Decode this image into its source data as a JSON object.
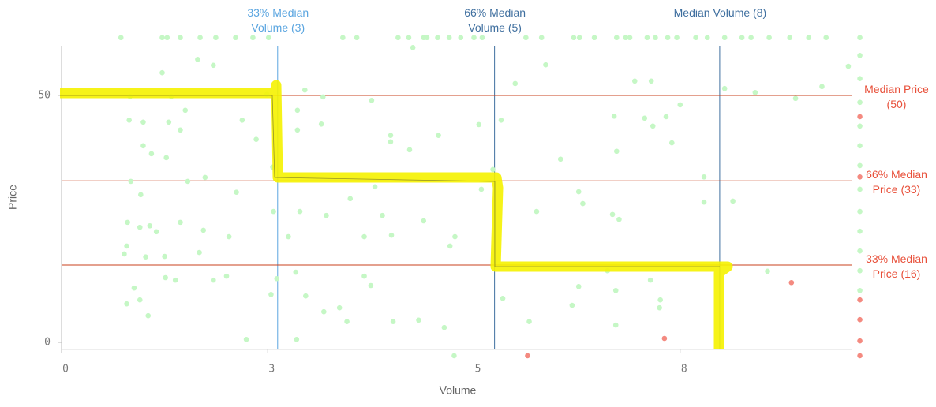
{
  "chart_data": {
    "type": "scatter",
    "x_label": "Volume",
    "y_label": "Price",
    "xlim": [
      0,
      9.8
    ],
    "ylim": [
      -3,
      62
    ],
    "xticks": [
      {
        "value": 0,
        "label": "0"
      },
      {
        "value": 2.5,
        "label": "3"
      },
      {
        "value": 5,
        "label": "5"
      },
      {
        "value": 7.5,
        "label": "8"
      }
    ],
    "yticks": [
      0,
      50
    ],
    "reference_lines": {
      "x": [
        {
          "value": 2.62,
          "label": "33% Median Volume (3)",
          "color": "#5aa5e0"
        },
        {
          "value": 5.25,
          "label": "66% Median Volume (5)",
          "color": "#3f6f9f"
        },
        {
          "value": 7.98,
          "label": "Median Volume (8)",
          "color": "#3f6f9f"
        }
      ],
      "y": [
        {
          "value": 50,
          "label": "Median Price (50)",
          "color": "#c8401c"
        },
        {
          "value": 32.7,
          "label": "66% Median Price (33)",
          "color": "#c8401c"
        },
        {
          "value": 15.65,
          "label": "33% Median Price (16)",
          "color": "#c8401c"
        }
      ]
    },
    "series": [
      {
        "color": "#c5f7c5",
        "x": [
          0.72,
          1.22,
          1.28,
          1.44,
          1.68,
          1.87,
          2.11,
          2.32,
          2.51,
          3.41,
          3.58,
          4.08,
          4.21,
          4.39,
          4.43,
          4.56,
          4.7,
          4.84,
          5.0,
          5.1,
          5.63,
          5.82,
          6.21,
          6.28,
          6.46,
          6.73,
          6.84,
          6.89,
          7.1,
          7.2,
          7.35,
          7.46,
          7.69,
          7.83,
          8.04,
          8.25,
          8.36,
          8.58,
          8.83,
          9.06,
          9.27,
          9.68,
          9.68,
          9.68,
          9.68,
          9.68,
          9.68,
          9.68,
          9.68,
          9.68,
          9.68,
          9.68,
          9.68,
          9.68,
          1.65,
          1.84,
          1.22,
          1.33,
          0.83,
          2.49,
          2.95,
          3.17,
          3.76,
          0.82,
          0.99,
          1.3,
          1.44,
          1.5,
          2.19,
          2.86,
          3.15,
          0.99,
          1.09,
          1.27,
          2.36,
          2.86,
          3.99,
          3.99,
          4.22,
          4.57,
          5.06,
          5.33,
          5.5,
          5.87,
          6.05,
          6.7,
          6.73,
          6.95,
          7.15,
          7.07,
          7.17,
          7.33,
          7.4,
          7.5,
          7.79,
          8.04,
          8.41,
          8.9,
          9.22,
          9.54,
          0.84,
          0.96,
          0.8,
          0.95,
          1.07,
          1.15,
          1.44,
          1.53,
          1.74,
          1.72,
          2.03,
          2.12,
          2.57,
          2.75,
          2.89,
          3.21,
          3.5,
          3.8,
          3.89,
          3.67,
          4.0,
          4.39,
          4.71,
          4.77,
          5.09,
          5.76,
          6.27,
          6.32,
          6.68,
          6.76,
          7.79,
          8.14,
          0.79,
          0.76,
          1.02,
          1.25,
          1.67,
          1.26,
          1.38,
          0.88,
          0.95,
          0.79,
          1.05,
          1.84,
          2.0,
          2.54,
          2.61,
          2.84,
          2.96,
          3.18,
          3.37,
          3.46,
          3.67,
          3.75,
          4.02,
          4.33,
          4.64,
          5.35,
          5.67,
          6.19,
          6.27,
          6.62,
          6.72,
          6.72,
          7.14,
          7.26,
          7.25,
          8.56,
          2.24,
          2.85,
          5.23,
          4.26,
          2.56,
          4.76
        ],
        "values": [
          61.7,
          61.7,
          61.7,
          61.7,
          61.7,
          61.7,
          61.7,
          61.7,
          61.7,
          61.7,
          61.7,
          61.7,
          61.7,
          61.7,
          61.7,
          61.7,
          61.7,
          61.7,
          61.7,
          61.7,
          61.7,
          61.7,
          61.7,
          61.7,
          61.7,
          61.7,
          61.7,
          61.7,
          61.7,
          61.7,
          61.7,
          61.7,
          61.7,
          61.7,
          61.7,
          61.7,
          61.7,
          61.7,
          61.7,
          61.7,
          61.7,
          61.7,
          58.1,
          53.4,
          48.6,
          43.8,
          39.8,
          35.8,
          31.0,
          26.5,
          22.5,
          18.5,
          14.5,
          10.5,
          57.3,
          56.1,
          54.6,
          49.8,
          49.8,
          50.2,
          51.1,
          49.7,
          49.0,
          45.0,
          44.6,
          44.6,
          43.0,
          47.0,
          45.0,
          47.0,
          44.2,
          39.8,
          38.2,
          37.4,
          41.1,
          43.0,
          41.9,
          40.6,
          39.0,
          41.9,
          44.1,
          45.0,
          52.4,
          56.2,
          37.1,
          45.8,
          38.7,
          52.9,
          52.9,
          45.4,
          43.8,
          45.7,
          40.4,
          48.1,
          33.5,
          51.4,
          50.6,
          49.4,
          51.8,
          55.9,
          32.6,
          29.9,
          24.3,
          23.3,
          23.6,
          22.4,
          24.3,
          32.6,
          33.4,
          22.7,
          21.4,
          30.4,
          26.5,
          21.4,
          26.5,
          25.7,
          29.1,
          31.5,
          25.7,
          21.4,
          21.7,
          24.6,
          19.5,
          21.4,
          31.0,
          26.5,
          30.5,
          28.1,
          25.9,
          24.9,
          28.4,
          28.6,
          19.5,
          17.9,
          17.3,
          17.4,
          18.2,
          13.1,
          12.6,
          11.0,
          8.6,
          7.8,
          5.4,
          12.6,
          13.4,
          9.7,
          12.9,
          14.2,
          9.4,
          6.2,
          7.0,
          4.2,
          13.4,
          11.5,
          4.2,
          4.5,
          3.0,
          8.9,
          4.2,
          7.5,
          11.3,
          14.5,
          10.5,
          3.5,
          12.6,
          8.6,
          7.0,
          14.4,
          0.6,
          0.6,
          35.0,
          59.7,
          35.5,
          -2.7
        ]
      },
      {
        "color": "#f48a80",
        "x": [
          9.68,
          9.68,
          9.68,
          9.68,
          9.68,
          9.68,
          8.85,
          7.31,
          5.65
        ],
        "values": [
          45.7,
          33.5,
          8.6,
          4.6,
          0.3,
          -2.7,
          12.1,
          0.8,
          -2.7
        ]
      }
    ]
  }
}
